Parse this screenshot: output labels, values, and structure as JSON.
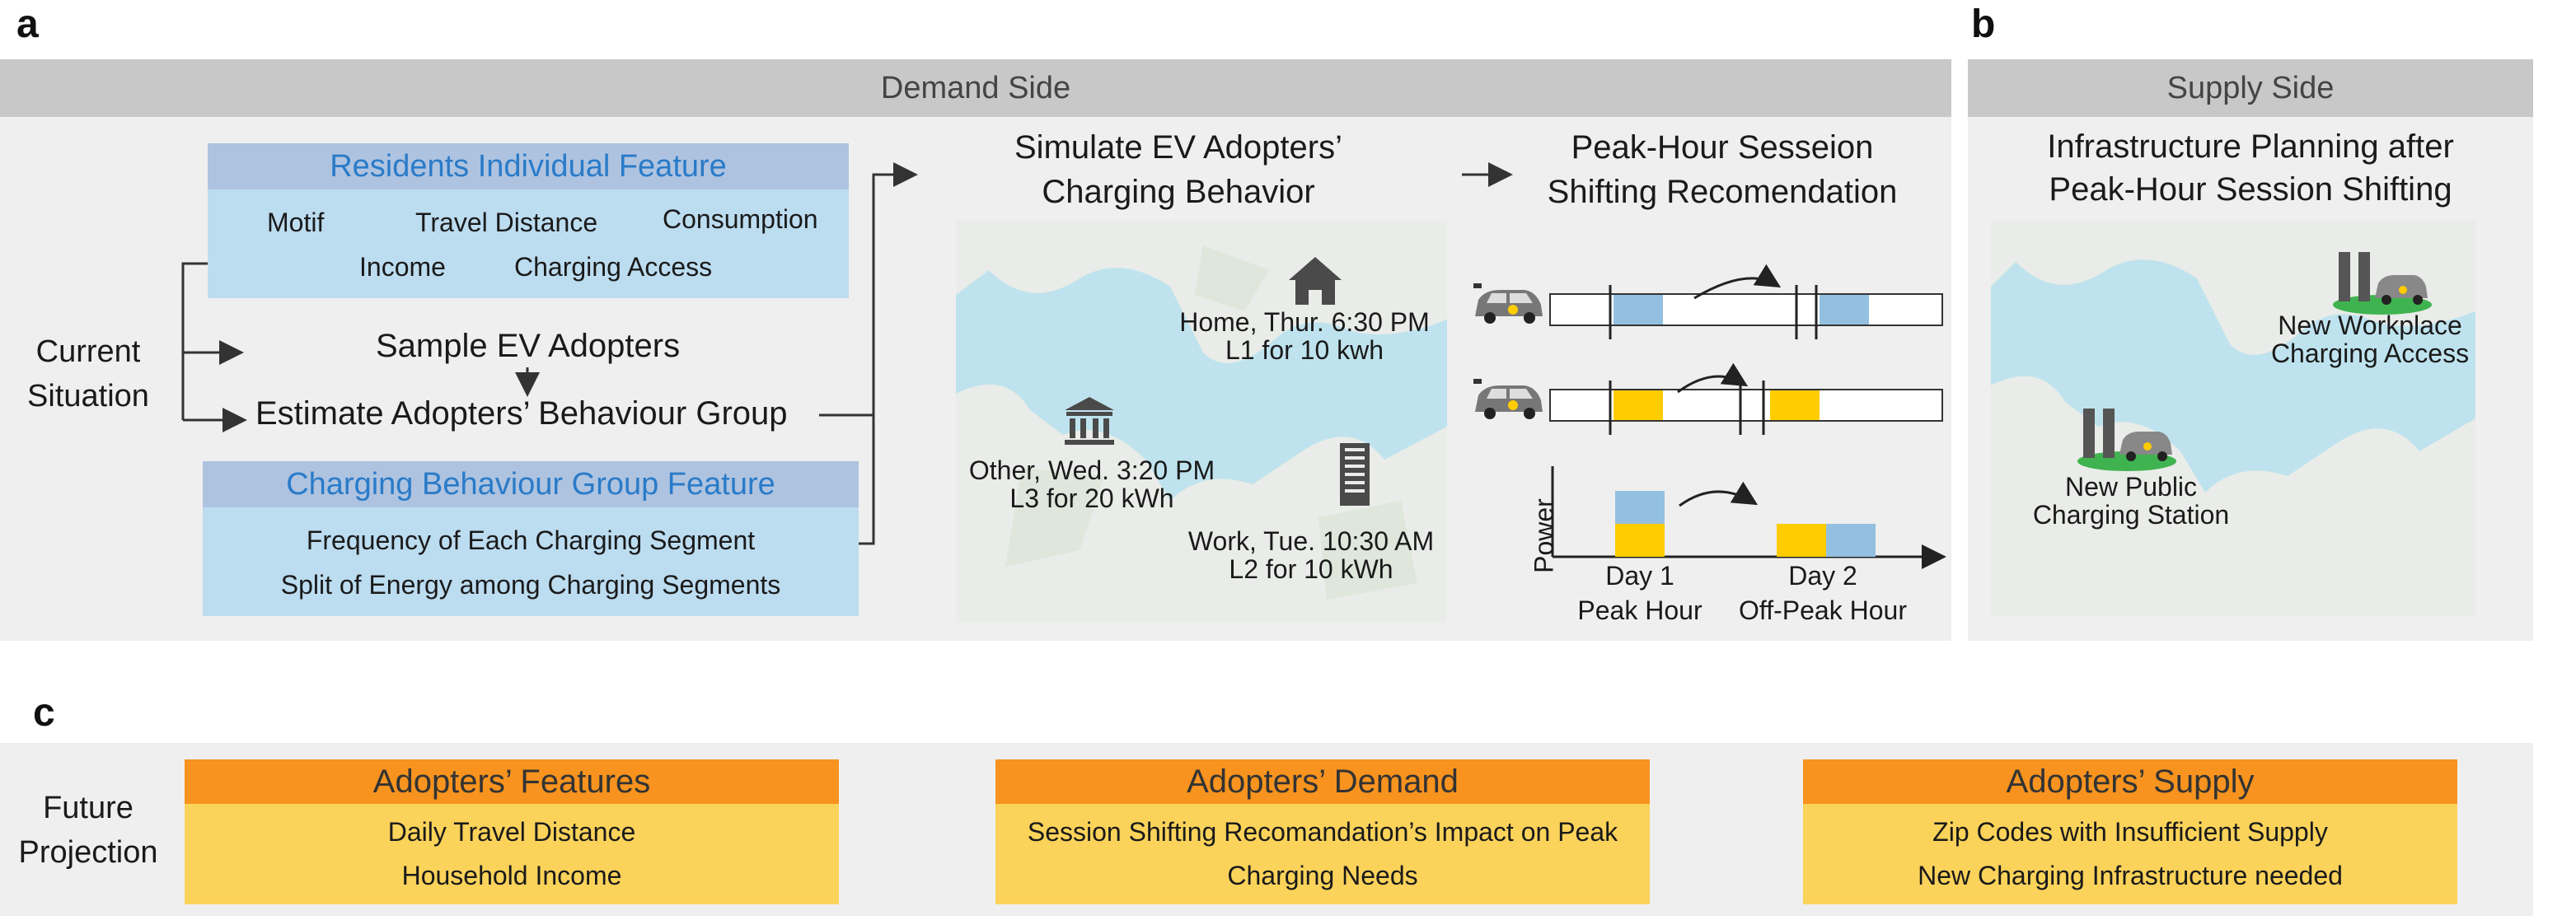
{
  "labels": {
    "panel_a": "a",
    "panel_b": "b",
    "panel_c": "c"
  },
  "demand": {
    "title": "Demand Side",
    "current_situation": "Current\nSituation",
    "residents": {
      "title": "Residents Individual Feature",
      "items": [
        "Motif",
        "Travel Distance",
        "Consumption",
        "Income",
        "Charging Access"
      ]
    },
    "sample": "Sample EV Adopters",
    "estimate": "Estimate Adopters’ Behaviour Group",
    "charging_group": {
      "title": "Charging Behaviour Group Feature",
      "items": [
        "Frequency of Each Charging Segment",
        "Split of Energy among Charging Segments"
      ]
    },
    "simulate": {
      "title": "Simulate EV Adopters’\nCharging Behavior",
      "home": "Home, Thur. 6:30 PM\nL1 for 10 kwh",
      "other": "Other, Wed. 3:20 PM\nL3 for 20 kWh",
      "work": "Work, Tue. 10:30 AM\nL2 for 10 kWh"
    },
    "peak": {
      "title": "Peak-Hour Sesseion\nShifting Recomendation",
      "ylabel": "Power",
      "day1": "Day 1\nPeak Hour",
      "day2": "Day 2\nOff-Peak Hour"
    }
  },
  "supply": {
    "title": "Supply Side",
    "subtitle": "Infrastructure Planning after\nPeak-Hour Session Shifting",
    "workplace": "New Workplace\nCharging Access",
    "public": "New Public\nCharging Station"
  },
  "future": {
    "label": "Future\nProjection",
    "boxes": [
      {
        "title": "Adopters’ Features",
        "lines": [
          "Daily Travel Distance",
          "Household Income"
        ]
      },
      {
        "title": "Adopters’ Demand",
        "lines": [
          "Session Shifting Recomandation’s Impact on Peak",
          "Charging Needs"
        ]
      },
      {
        "title": "Adopters’ Supply",
        "lines": [
          "Zip Codes with Insufficient Supply",
          "New Charging Infrastructure needed"
        ]
      }
    ]
  },
  "colors": {
    "header_gray": "#c8c8c8",
    "panel_bg": "#efefef",
    "feature_head": "#aec3e0",
    "feature_body": "#bcdcf0",
    "feature_title": "#2a7bc8",
    "orange": "#f7931e",
    "yellow": "#fbd35a",
    "segment_blue": "#93c0e0",
    "segment_yellow": "#ffcc00",
    "map_water": "#bfe3ee"
  }
}
